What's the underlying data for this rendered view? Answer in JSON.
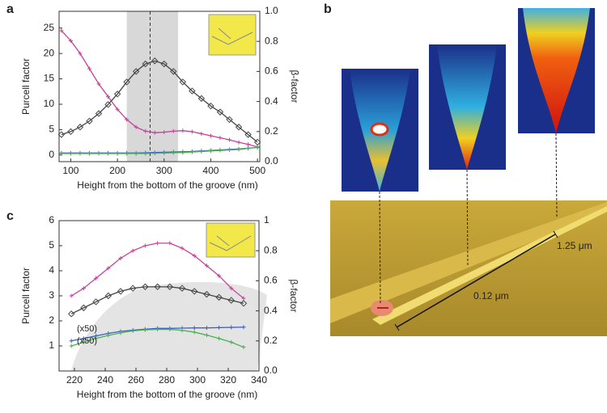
{
  "panel_labels": [
    "a",
    "b",
    "c"
  ],
  "chart_data": [
    {
      "type": "line",
      "xlabel": "Height from the bottom of the groove (nm)",
      "ylabel": "Purcell factor",
      "y2label": "β-factor",
      "xlim": [
        75,
        505
      ],
      "xticks": [
        100,
        200,
        300,
        400,
        500
      ],
      "ylim": [
        -1.3,
        28.3
      ],
      "yticks": [
        0,
        5,
        10,
        15,
        20,
        25
      ],
      "y2lim": [
        0,
        1
      ],
      "y2ticks": [
        {
          "value": 0,
          "label": "0.0"
        },
        0.2,
        0.4,
        0.6,
        0.8,
        {
          "value": 1,
          "label": "1.0"
        }
      ],
      "highlight_range": [
        220,
        330
      ],
      "marker_x": 270,
      "x": [
        80,
        100,
        120,
        140,
        160,
        180,
        200,
        220,
        240,
        260,
        280,
        300,
        320,
        340,
        360,
        380,
        400,
        420,
        440,
        460,
        480,
        500
      ],
      "series": [
        {
          "color": "#c8429a",
          "values": [
            24.5,
            22.5,
            20,
            17,
            14,
            11.5,
            9,
            7,
            5.5,
            4.7,
            4.4,
            4.5,
            4.7,
            4.8,
            4.6,
            4.2,
            3.8,
            3.4,
            3,
            2.5,
            2.1,
            1.6
          ]
        },
        {
          "color": "#444444",
          "axis": "y2",
          "values": [
            0.18,
            0.2,
            0.23,
            0.27,
            0.32,
            0.38,
            0.45,
            0.53,
            0.6,
            0.65,
            0.67,
            0.65,
            0.6,
            0.53,
            0.47,
            0.42,
            0.37,
            0.33,
            0.28,
            0.23,
            0.18,
            0.13
          ]
        },
        {
          "color": "#3a5fc8",
          "values": [
            0.4,
            0.4,
            0.4,
            0.4,
            0.4,
            0.4,
            0.4,
            0.4,
            0.4,
            0.45,
            0.5,
            0.55,
            0.6,
            0.65,
            0.7,
            0.8,
            0.9,
            1.0,
            1.1,
            1.2,
            1.35,
            1.5
          ]
        },
        {
          "color": "#4caf50",
          "values": [
            0.3,
            0.3,
            0.3,
            0.3,
            0.3,
            0.3,
            0.3,
            0.3,
            0.3,
            0.3,
            0.35,
            0.4,
            0.45,
            0.5,
            0.6,
            0.7,
            0.8,
            0.9,
            1.0,
            1.1,
            1.3,
            1.5
          ]
        }
      ]
    },
    {
      "type": "line",
      "xlabel": "Height from the bottom of the groove (nm)",
      "ylabel": "Purcell factor",
      "y2label": "β-factor",
      "xlim": [
        210,
        340
      ],
      "xticks": [
        220,
        240,
        260,
        280,
        300,
        320,
        340
      ],
      "ylim": [
        0,
        6
      ],
      "yticks": [
        1,
        2,
        3,
        4,
        5,
        6
      ],
      "y2lim": [
        0,
        1
      ],
      "y2ticks": [
        {
          "value": 0,
          "label": "0.0"
        },
        0.2,
        0.4,
        0.6,
        0.8,
        1
      ],
      "annotations": [
        "(x50)",
        "(x50)"
      ],
      "x": [
        218,
        226,
        234,
        242,
        250,
        258,
        266,
        274,
        282,
        290,
        298,
        306,
        314,
        322,
        330
      ],
      "series": [
        {
          "color": "#c8429a",
          "values": [
            3.0,
            3.3,
            3.7,
            4.1,
            4.5,
            4.8,
            5.0,
            5.1,
            5.1,
            4.9,
            4.6,
            4.2,
            3.8,
            3.3,
            2.9
          ]
        },
        {
          "color": "#444444",
          "axis": "y2",
          "values": [
            0.38,
            0.42,
            0.46,
            0.5,
            0.53,
            0.55,
            0.56,
            0.56,
            0.56,
            0.55,
            0.53,
            0.51,
            0.49,
            0.47,
            0.45
          ]
        },
        {
          "color": "#3a5fc8",
          "values": [
            1.2,
            1.3,
            1.4,
            1.5,
            1.58,
            1.63,
            1.67,
            1.7,
            1.7,
            1.71,
            1.72,
            1.72,
            1.73,
            1.74,
            1.75
          ]
        },
        {
          "color": "#4caf50",
          "values": [
            1.0,
            1.15,
            1.3,
            1.42,
            1.52,
            1.6,
            1.64,
            1.66,
            1.66,
            1.62,
            1.55,
            1.43,
            1.3,
            1.15,
            0.95
          ]
        }
      ]
    }
  ],
  "diagram": {
    "labels": [
      "1.25 μm",
      "0.12 μm"
    ]
  }
}
